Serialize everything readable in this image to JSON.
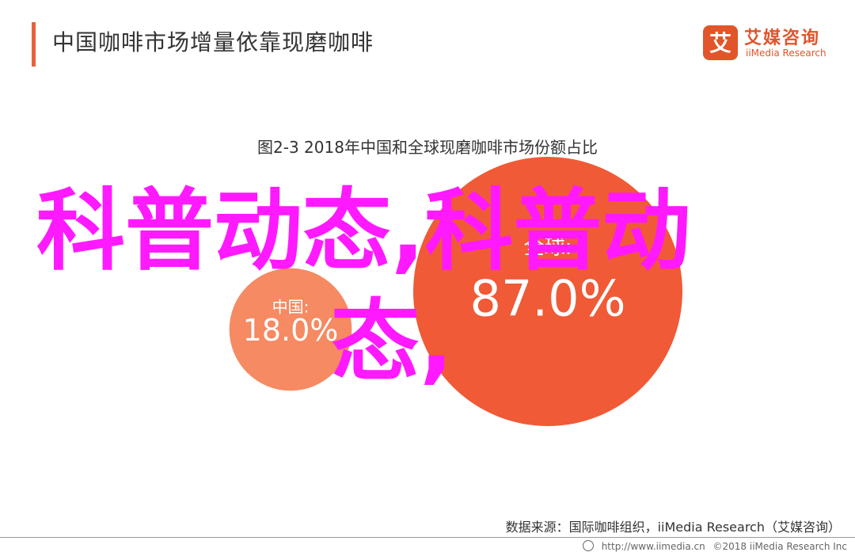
{
  "header": {
    "title": "中国咖啡市场增量依靠现磨咖啡",
    "logo_cn": "艾媒咨询",
    "logo_en": "iiMedia Research",
    "logo_mark": "艾"
  },
  "overlay": {
    "line1": "科普动态,科普动",
    "line2": "态,"
  },
  "source": "数据来源：国际咖啡组织，iiMedia Research（艾媒咨询）",
  "footer": {
    "url": "http://www.iimedia.cn",
    "copyright": "©2018  iiMedia Research Inc"
  },
  "colors": {
    "accent": "#e8623a",
    "bubble_small": "#f58a63",
    "bubble_large": "#f05a36",
    "overlay_text": "#ff19ff",
    "brand": "#e2542a"
  },
  "chart_data": {
    "type": "bubble",
    "title": "图2-3 2018年中国和全球现磨咖啡市场份额占比",
    "series": [
      {
        "name": "中国:",
        "value": 18.0,
        "label": "18.0%"
      },
      {
        "name": "全球:",
        "value": 87.0,
        "label": "87.0%"
      }
    ],
    "unit": "%"
  }
}
